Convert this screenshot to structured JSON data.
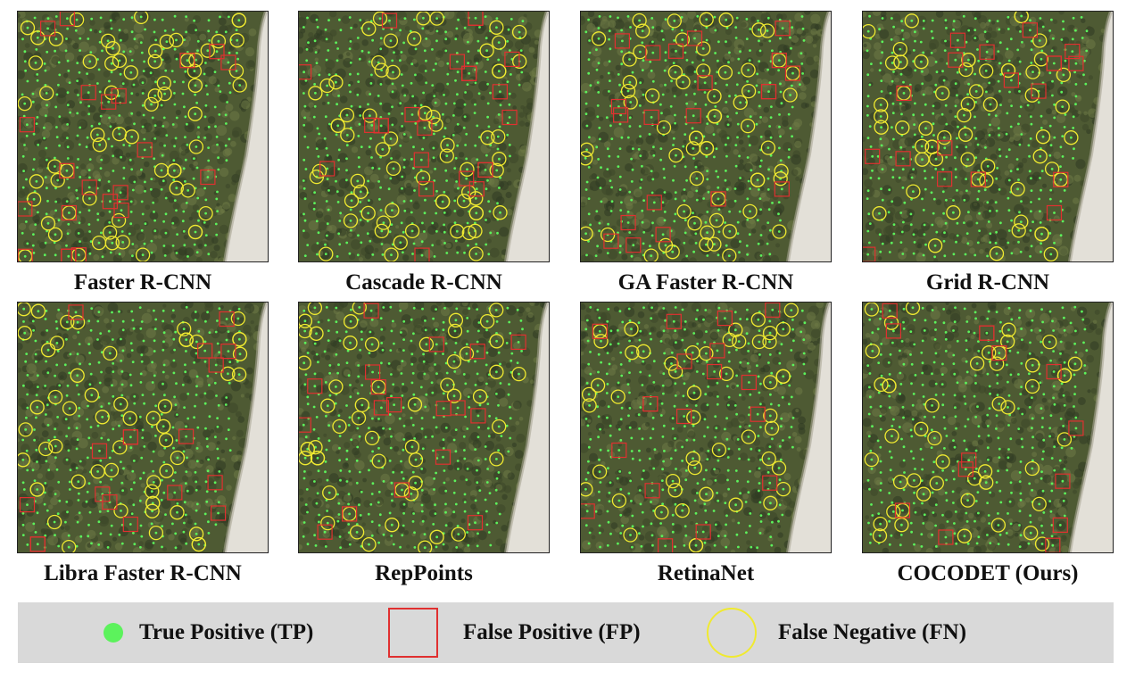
{
  "panels": [
    {
      "caption": "Faster R-CNN"
    },
    {
      "caption": "Cascade R-CNN"
    },
    {
      "caption": "GA Faster R-CNN"
    },
    {
      "caption": "Grid R-CNN"
    },
    {
      "caption": "Libra Faster R-CNN"
    },
    {
      "caption": "RepPoints"
    },
    {
      "caption": "RetinaNet"
    },
    {
      "caption": "COCODET (Ours)"
    }
  ],
  "legend": {
    "tp_label": "True Positive (TP)",
    "fp_label": "False Positive (FP)",
    "fn_label": "False Negative (FN)"
  },
  "colors": {
    "true_positive": "#5cf25c",
    "false_positive": "#e03030",
    "false_negative": "#f0ea30",
    "legend_background": "#d9d9d9"
  }
}
